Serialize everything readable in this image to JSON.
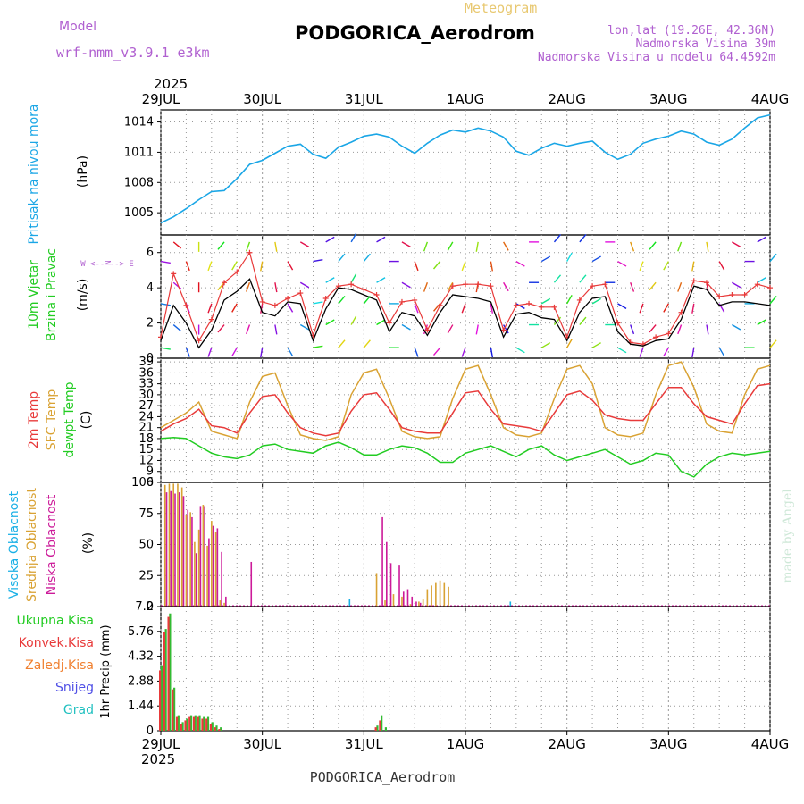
{
  "header": {
    "model_label": "Model",
    "model_name": "wrf-nmm_v3.9.1 e3km",
    "product": "Meteogram",
    "station": "PODGORICA_Aerodrom",
    "coords": "lon,lat (19.26E, 42.36N)",
    "elevation": "Nadmorska Visina 39m",
    "model_elevation": "Nadmorska Visina u modelu 64.4592m",
    "footer_station": "PODGORICA_Aerodrom",
    "credit": "made by Angel"
  },
  "time_axis": {
    "year": "2025",
    "days": [
      "29JUL",
      "30JUL",
      "31JUL",
      "1AUG",
      "2AUG",
      "3AUG",
      "4AUG"
    ],
    "start_hour": 0,
    "end_hour": 144
  },
  "colors": {
    "pressure": "#1aa6e6",
    "wind_speed": "#000000",
    "gust": "#e83a3a",
    "temp_2m": "#e83a3a",
    "temp_sfc": "#d9a233",
    "dewpoint": "#22cc22",
    "cloud_high": "#1ab0e6",
    "cloud_mid": "#d9a233",
    "cloud_low": "#cc1a99",
    "precip_total": "#33bb33",
    "precip_conv": "#e83a3a",
    "precip_frozen": "#f08030",
    "snow": "#5050e6",
    "hail": "#20c0c0",
    "grid": "#999999"
  },
  "chart_data": [
    {
      "type": "line",
      "panel": "pressure",
      "title": "Pritisak na nivou mora",
      "ylabel": "(hPa)",
      "ylim": [
        1002.8,
        1015.2
      ],
      "yticks": [
        1005,
        1008,
        1011,
        1014
      ],
      "x_hours": [
        0,
        3,
        6,
        9,
        12,
        15,
        18,
        21,
        24,
        27,
        30,
        33,
        36,
        39,
        42,
        45,
        48,
        51,
        54,
        57,
        60,
        63,
        66,
        69,
        72,
        75,
        78,
        81,
        84,
        87,
        90,
        93,
        96,
        99,
        102,
        105,
        108,
        111,
        114,
        117,
        120,
        123,
        126,
        129,
        132,
        135,
        138,
        141,
        144
      ],
      "series": [
        {
          "name": "MSLP",
          "values": [
            1004.0,
            1004.6,
            1005.4,
            1006.3,
            1007.1,
            1007.2,
            1008.4,
            1009.8,
            1010.2,
            1010.9,
            1011.6,
            1011.8,
            1010.8,
            1010.4,
            1011.5,
            1012.0,
            1012.6,
            1012.8,
            1012.5,
            1011.6,
            1010.9,
            1011.9,
            1012.7,
            1013.2,
            1013.0,
            1013.4,
            1013.1,
            1012.5,
            1011.1,
            1010.7,
            1011.4,
            1011.9,
            1011.6,
            1011.9,
            1012.1,
            1011.0,
            1010.3,
            1010.8,
            1011.9,
            1012.3,
            1012.6,
            1013.1,
            1012.8,
            1012.0,
            1011.7,
            1012.3,
            1013.4,
            1014.4,
            1014.7
          ]
        }
      ]
    },
    {
      "type": "line",
      "panel": "wind",
      "title": "10m Vjetar",
      "subtitle": "Brzina i Pravac",
      "ylabel": "(m/s)",
      "ylim": [
        0,
        7
      ],
      "yticks": [
        0,
        2,
        4,
        6
      ],
      "compass": "W <-- --> E",
      "compass_s": "N",
      "x_hours": [
        0,
        3,
        6,
        9,
        12,
        15,
        18,
        21,
        24,
        27,
        30,
        33,
        36,
        39,
        42,
        45,
        48,
        51,
        54,
        57,
        60,
        63,
        66,
        69,
        72,
        75,
        78,
        81,
        84,
        87,
        90,
        93,
        96,
        99,
        102,
        105,
        108,
        111,
        114,
        117,
        120,
        123,
        126,
        129,
        132,
        135,
        138,
        141,
        144
      ],
      "series": [
        {
          "name": "speed",
          "values": [
            1.0,
            3.0,
            2.0,
            0.6,
            1.6,
            3.3,
            3.8,
            4.5,
            2.6,
            2.4,
            3.2,
            3.1,
            1.0,
            2.8,
            4.0,
            3.9,
            3.6,
            3.3,
            1.5,
            2.6,
            2.4,
            1.3,
            2.6,
            3.6,
            3.5,
            3.4,
            3.2,
            1.2,
            2.5,
            2.6,
            2.3,
            2.2,
            1.0,
            2.6,
            3.4,
            3.5,
            1.5,
            0.8,
            0.7,
            1.0,
            1.1,
            2.2,
            4.1,
            3.9,
            3.0,
            3.2,
            3.2,
            3.1,
            3.0
          ]
        },
        {
          "name": "gust",
          "values": [
            1.2,
            4.8,
            3.0,
            1.0,
            2.2,
            4.3,
            4.9,
            6.0,
            3.2,
            3.0,
            3.4,
            3.7,
            1.3,
            3.4,
            4.1,
            4.2,
            3.9,
            3.6,
            2.0,
            3.2,
            3.3,
            1.6,
            3.0,
            4.1,
            4.2,
            4.2,
            4.1,
            1.6,
            3.0,
            3.1,
            2.9,
            2.9,
            1.2,
            3.3,
            4.1,
            4.2,
            2.0,
            0.9,
            0.8,
            1.2,
            1.4,
            2.6,
            4.4,
            4.3,
            3.5,
            3.6,
            3.6,
            4.2,
            4.0
          ]
        }
      ],
      "dir_deg": [
        100,
        130,
        160,
        180,
        200,
        220,
        210,
        200,
        190,
        170,
        150,
        120,
        80,
        60,
        40,
        30,
        40,
        60,
        90,
        120,
        160,
        200,
        220,
        210,
        200,
        190,
        170,
        150,
        120,
        90,
        60,
        40,
        30,
        40,
        60,
        90,
        120,
        160,
        200,
        220,
        210,
        200,
        190,
        170,
        150,
        120,
        90,
        60,
        40
      ]
    },
    {
      "type": "line",
      "panel": "temperature",
      "titles": [
        "2m Temp",
        "SFC Temp",
        "dewpt Temp"
      ],
      "ylabel": "(C)",
      "ylim": [
        6,
        40
      ],
      "yticks": [
        6,
        9,
        12,
        15,
        18,
        21,
        24,
        27,
        30,
        33,
        36,
        39
      ],
      "x_hours": [
        0,
        3,
        6,
        9,
        12,
        15,
        18,
        21,
        24,
        27,
        30,
        33,
        36,
        39,
        42,
        45,
        48,
        51,
        54,
        57,
        60,
        63,
        66,
        69,
        72,
        75,
        78,
        81,
        84,
        87,
        90,
        93,
        96,
        99,
        102,
        105,
        108,
        111,
        114,
        117,
        120,
        123,
        126,
        129,
        132,
        135,
        138,
        141,
        144
      ],
      "series": [
        {
          "name": "2m Temp",
          "values": [
            20.0,
            22.0,
            23.5,
            26.0,
            21.5,
            21.0,
            19.5,
            25.0,
            29.5,
            30.0,
            25.0,
            21.0,
            19.5,
            18.8,
            19.5,
            25.5,
            30.0,
            30.5,
            26.0,
            21.0,
            20.0,
            19.5,
            19.5,
            25.0,
            30.5,
            31.0,
            26.0,
            22.0,
            21.5,
            21.0,
            20.0,
            25.0,
            30.0,
            31.0,
            28.5,
            24.5,
            23.5,
            23.0,
            23.0,
            27.5,
            32.0,
            32.0,
            27.5,
            24.0,
            23.0,
            22.0,
            27.5,
            32.5,
            33.0
          ]
        },
        {
          "name": "SFC Temp",
          "values": [
            21.0,
            23.0,
            25.0,
            28.0,
            20.0,
            19.0,
            18.0,
            28.0,
            35.0,
            36.0,
            27.0,
            19.0,
            18.0,
            17.5,
            18.5,
            30.0,
            36.0,
            37.0,
            29.0,
            20.0,
            18.5,
            18.0,
            18.5,
            29.0,
            37.0,
            38.0,
            30.0,
            21.0,
            19.0,
            18.5,
            19.5,
            29.0,
            37.0,
            38.0,
            33.0,
            21.0,
            19.0,
            18.5,
            19.5,
            30.0,
            38.0,
            39.0,
            32.0,
            22.0,
            20.0,
            19.5,
            30.0,
            37.0,
            38.0
          ]
        },
        {
          "name": "dewpt Temp",
          "values": [
            18.0,
            18.3,
            18.0,
            16.0,
            14.0,
            13.0,
            12.5,
            13.5,
            16.0,
            16.5,
            15.0,
            14.5,
            14.0,
            16.0,
            17.0,
            15.5,
            13.5,
            13.5,
            15.0,
            16.0,
            15.5,
            14.0,
            11.5,
            11.5,
            14.0,
            15.0,
            16.0,
            14.5,
            13.0,
            15.0,
            16.0,
            13.5,
            12.0,
            13.0,
            14.0,
            15.0,
            13.0,
            11.0,
            12.0,
            14.0,
            13.5,
            9.0,
            7.5,
            11.0,
            13.0,
            14.0,
            13.5,
            14.0,
            14.5
          ]
        }
      ]
    },
    {
      "type": "bar",
      "panel": "clouds",
      "titles": [
        "Visoka Oblacnost",
        "Srednja Oblacnost",
        "Niska Oblacnost"
      ],
      "ylabel": "(%)",
      "ylim": [
        0,
        100
      ],
      "yticks": [
        0,
        25,
        50,
        75,
        100
      ],
      "series": [
        {
          "name": "Visoka Oblacnost",
          "hours": [
            45,
            83
          ],
          "values": [
            6,
            4
          ]
        },
        {
          "name": "Srednja Oblacnost",
          "hours": [
            1,
            2,
            3,
            4,
            5,
            6,
            7,
            8,
            9,
            10,
            11,
            12,
            13,
            14,
            15,
            51,
            53,
            55,
            57,
            59,
            61,
            62,
            63,
            64,
            65,
            66,
            67,
            68
          ],
          "values": [
            98,
            99,
            99,
            99,
            96,
            74,
            76,
            52,
            62,
            82,
            49,
            69,
            60,
            5,
            3,
            27,
            5,
            10,
            8,
            2,
            4,
            6,
            14,
            17,
            19,
            21,
            19,
            16
          ]
        },
        {
          "name": "Niska Oblacnost",
          "hours": [
            1,
            2,
            3,
            4,
            5,
            6,
            7,
            8,
            9,
            10,
            11,
            12,
            13,
            14,
            15,
            21,
            52,
            53,
            54,
            56,
            57,
            58,
            59,
            60,
            61
          ],
          "values": [
            92,
            93,
            91,
            92,
            89,
            78,
            72,
            43,
            81,
            81,
            55,
            65,
            63,
            44,
            8,
            36,
            72,
            52,
            35,
            33,
            12,
            14,
            8,
            4,
            3
          ]
        }
      ]
    },
    {
      "type": "bar",
      "panel": "precip",
      "titles": [
        "Ukupna Kisa",
        "Konvek.Kisa",
        "Zaledj.Kisa",
        "Snijeg",
        "Grad"
      ],
      "ylabel": "1hr Precip (mm)",
      "ylim": [
        0,
        7.2
      ],
      "yticks": [
        0,
        1.44,
        2.88,
        4.32,
        5.76,
        7.2
      ],
      "series": [
        {
          "name": "Ukupna Kisa",
          "hours": [
            0,
            1,
            2,
            3,
            4,
            5,
            6,
            7,
            8,
            9,
            10,
            11,
            12,
            13,
            14,
            51,
            52,
            53
          ],
          "values": [
            3.8,
            5.9,
            6.8,
            2.5,
            0.9,
            0.5,
            0.7,
            0.9,
            0.9,
            0.9,
            0.8,
            0.8,
            0.5,
            0.3,
            0.2,
            0.3,
            0.9,
            0.2
          ]
        },
        {
          "name": "Konvek.Kisa",
          "hours": [
            0,
            1,
            2,
            3,
            4,
            5,
            6,
            7,
            8,
            9,
            10,
            11,
            12,
            13,
            14,
            51,
            52
          ],
          "values": [
            3.5,
            5.7,
            6.6,
            2.4,
            0.8,
            0.4,
            0.6,
            0.8,
            0.8,
            0.8,
            0.7,
            0.7,
            0.4,
            0.2,
            0.1,
            0.2,
            0.6
          ]
        }
      ]
    }
  ]
}
